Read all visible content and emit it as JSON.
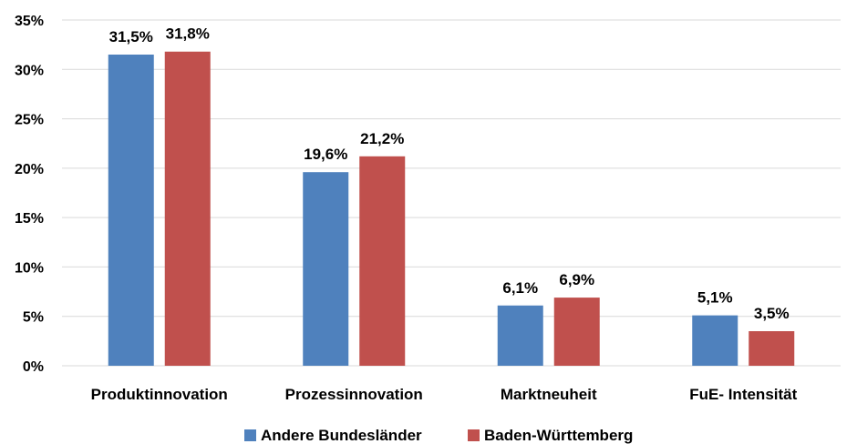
{
  "chart_data": {
    "type": "bar",
    "categories": [
      "Produktinnovation",
      "Prozessinnovation",
      "Marktneuheit",
      "FuE- Intensität"
    ],
    "series": [
      {
        "name": "Andere Bundesländer",
        "color": "#4f81bd",
        "values": [
          31.5,
          19.6,
          6.1,
          5.1
        ],
        "labels": [
          "31,5%",
          "19,6%",
          "6,1%",
          "5,1%"
        ]
      },
      {
        "name": "Baden-Württemberg",
        "color": "#c0504d",
        "values": [
          31.8,
          21.2,
          6.9,
          3.5
        ],
        "labels": [
          "31,8%",
          "21,2%",
          "6,9%",
          "3,5%"
        ]
      }
    ],
    "yticks": [
      0,
      5,
      10,
      15,
      20,
      25,
      30,
      35
    ],
    "ytick_labels": [
      "0%",
      "5%",
      "10%",
      "15%",
      "20%",
      "25%",
      "30%",
      "35%"
    ],
    "ylim": [
      0,
      35
    ],
    "grid": true,
    "legend_position": "bottom"
  }
}
